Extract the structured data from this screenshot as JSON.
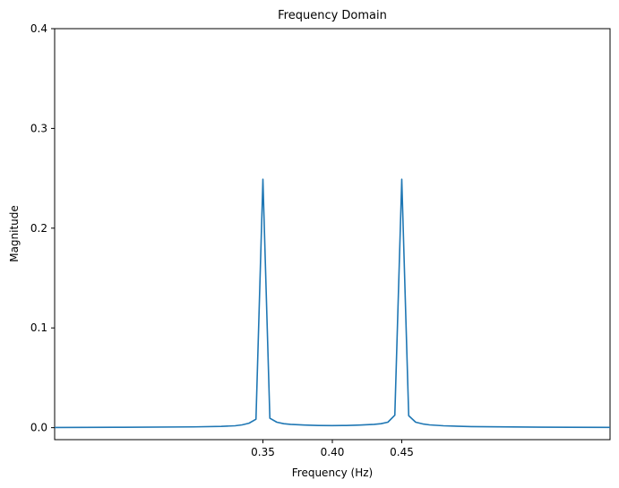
{
  "chart_data": {
    "type": "line",
    "title": "Frequency Domain",
    "xlabel": "Frequency (Hz)",
    "ylabel": "Magnitude",
    "xlim": [
      0.2,
      0.6
    ],
    "ylim": [
      -0.012,
      0.4
    ],
    "x_ticks": [
      0.35,
      0.4,
      0.45
    ],
    "x_tick_labels": [
      "0.35",
      "0.40",
      "0.45"
    ],
    "y_ticks": [
      0.0,
      0.1,
      0.2,
      0.3,
      0.4
    ],
    "y_tick_labels": [
      "0.0",
      "0.1",
      "0.2",
      "0.3",
      "0.4"
    ],
    "grid": false,
    "line_color": "#1f77b4",
    "series": [
      {
        "x": [
          0.2,
          0.25,
          0.3,
          0.32,
          0.33,
          0.335,
          0.34,
          0.345,
          0.35,
          0.355,
          0.36,
          0.365,
          0.37,
          0.38,
          0.39,
          0.4,
          0.41,
          0.42,
          0.43,
          0.435,
          0.44,
          0.445,
          0.45,
          0.455,
          0.46,
          0.465,
          0.47,
          0.48,
          0.5,
          0.55,
          0.6
        ],
        "values": [
          0.0002,
          0.0004,
          0.0008,
          0.0013,
          0.0019,
          0.0028,
          0.0045,
          0.0085,
          0.249,
          0.0095,
          0.0055,
          0.004,
          0.0033,
          0.0026,
          0.0022,
          0.0021,
          0.0022,
          0.0026,
          0.0033,
          0.004,
          0.0055,
          0.0125,
          0.249,
          0.012,
          0.0055,
          0.0038,
          0.0028,
          0.0019,
          0.0011,
          0.0005,
          0.0003
        ]
      }
    ]
  }
}
